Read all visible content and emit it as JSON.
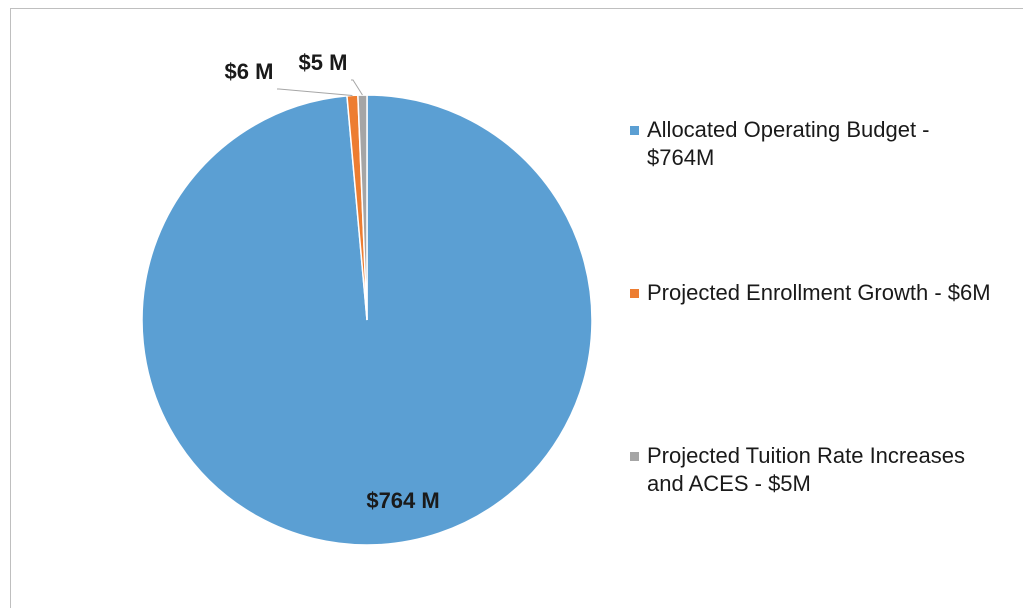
{
  "chart_data": {
    "type": "pie",
    "categories": [
      "Allocated Operating Budget - $764M",
      "Projected Enrollment Growth - $6M",
      "Projected Tuition Rate Increases and ACES - $5M"
    ],
    "values": [
      764,
      6,
      5
    ],
    "value_labels": [
      "$764 M",
      "$6 M",
      "$5 M"
    ],
    "colors": [
      "#5b9fd3",
      "#ed7d31",
      "#a5a5a5"
    ],
    "legend": "right"
  }
}
